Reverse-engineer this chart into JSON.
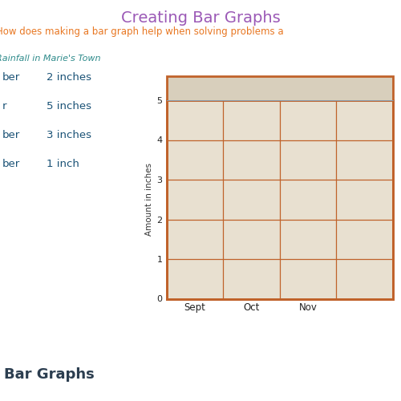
{
  "title": "Creating Bar Graphs",
  "title_color": "#9B59B6",
  "subtitle": "does making a bar graph help when solving problems a",
  "subtitle_color": "#E87722",
  "table_title": "Rainfall in Marie's Town",
  "table_title_color": "#2E8B8B",
  "table_rows": [
    [
      "ber",
      "2 inches"
    ],
    [
      "r",
      "5 inches"
    ],
    [
      "ber",
      "3 inches"
    ],
    [
      "ber",
      "1 inch"
    ]
  ],
  "table_color": "#1A5276",
  "chart_xlabels": [
    "Sept",
    "Oct",
    "Nov"
  ],
  "chart_ylabel": "Amount in inches",
  "chart_yticks": [
    0,
    1,
    2,
    3,
    4,
    5
  ],
  "chart_border_color": "#C0622A",
  "chart_grid_color": "#C0622A",
  "chart_bg_color": "#E8E0D0",
  "chart_header_color": "#D8CFBC",
  "bottom_label": "Bar Graphs",
  "bottom_label_color": "#2C3E50",
  "bottom_bg_color": "#E8E8EE",
  "page_bg_color": "#FFFFFF",
  "photo_bg_color": "#C8C0B0"
}
